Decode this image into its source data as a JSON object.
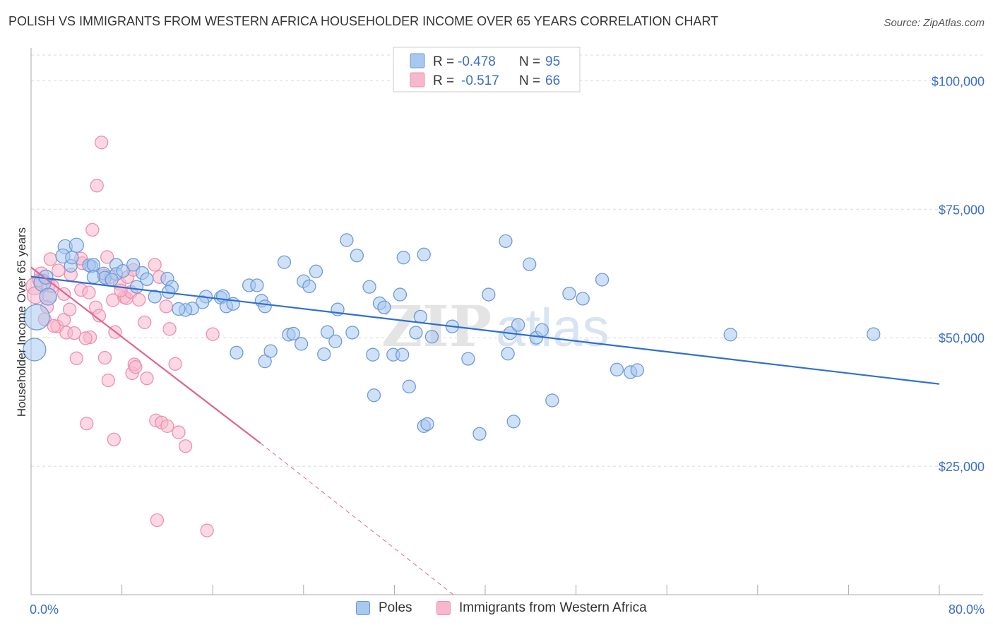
{
  "header": {
    "title": "POLISH VS IMMIGRANTS FROM WESTERN AFRICA HOUSEHOLDER INCOME OVER 65 YEARS CORRELATION CHART",
    "source": "Source: ZipAtlas.com"
  },
  "watermark": "ZIPatlas",
  "legend_box": {
    "rows": [
      {
        "r_label": "R =",
        "r_value": "-0.478",
        "n_label": "N =",
        "n_value": "95"
      },
      {
        "r_label": "R =",
        "r_value": "-0.517",
        "n_label": "N =",
        "n_value": "66"
      }
    ]
  },
  "colors": {
    "poles_fill": "#a8c8f0",
    "poles_stroke": "#6f9ad8",
    "poles_line": "#2e6fd0",
    "africa_fill": "#f7b8cc",
    "africa_stroke": "#ee8fae",
    "africa_line": "#e0658f",
    "grid": "#d8d8d8",
    "axis_text": "#3d6fc4"
  },
  "chart_data": {
    "type": "scatter",
    "title": "POLISH VS IMMIGRANTS FROM WESTERN AFRICA HOUSEHOLDER INCOME OVER 65 YEARS CORRELATION CHART",
    "xlabel": "",
    "ylabel": "Householder Income Over 65 years",
    "xlim": [
      0,
      80
    ],
    "ylim": [
      0,
      105000
    ],
    "x_tick_labels": [
      "0.0%",
      "80.0%"
    ],
    "y_ticks": [
      25000,
      50000,
      75000,
      100000
    ],
    "y_tick_labels": [
      "$25,000",
      "$50,000",
      "$75,000",
      "$100,000"
    ],
    "grid": true,
    "legend_position": "top-center",
    "series": [
      {
        "name": "Poles",
        "r": -0.478,
        "n": 95,
        "trend": {
          "x": [
            0.0,
            80.0
          ],
          "y": [
            61900,
            41000
          ],
          "dashed_to": null
        },
        "points": [
          [
            0.3,
            47700,
            16
          ],
          [
            0.5,
            54000,
            18
          ],
          [
            1.0,
            60700,
            12
          ],
          [
            1.5,
            58000,
            12
          ],
          [
            1.3,
            61800,
            10
          ],
          [
            3.0,
            67700,
            10
          ],
          [
            2.8,
            65900,
            10
          ],
          [
            4.0,
            68000,
            10
          ],
          [
            3.5,
            64000,
            9
          ],
          [
            3.6,
            65600,
            9
          ],
          [
            5.3,
            63900,
            9
          ],
          [
            5.1,
            64100,
            9
          ],
          [
            5.5,
            64200,
            9
          ],
          [
            6.4,
            62500,
            9
          ],
          [
            6.5,
            61700,
            9
          ],
          [
            5.5,
            61800,
            9
          ],
          [
            7.5,
            64200,
            9
          ],
          [
            7.5,
            62400,
            9
          ],
          [
            7.1,
            61300,
            9
          ],
          [
            8.1,
            63000,
            9
          ],
          [
            9.0,
            64200,
            9
          ],
          [
            9.8,
            62600,
            9
          ],
          [
            10.2,
            61400,
            9
          ],
          [
            9.3,
            59900,
            9
          ],
          [
            12.0,
            61500,
            9
          ],
          [
            12.4,
            59900,
            9
          ],
          [
            10.9,
            58000,
            9
          ],
          [
            12.1,
            58900,
            9
          ],
          [
            15.4,
            58000,
            9
          ],
          [
            15.1,
            56900,
            9
          ],
          [
            16.7,
            57800,
            9
          ],
          [
            16.9,
            58100,
            9
          ],
          [
            14.2,
            55700,
            9
          ],
          [
            13.6,
            55400,
            9
          ],
          [
            17.2,
            56100,
            9
          ],
          [
            17.8,
            56600,
            9
          ],
          [
            19.2,
            60200,
            9
          ],
          [
            19.9,
            60200,
            9
          ],
          [
            20.3,
            57200,
            9
          ],
          [
            20.6,
            56100,
            9
          ],
          [
            22.3,
            64700,
            9
          ],
          [
            24.0,
            61000,
            9
          ],
          [
            25.1,
            62900,
            9
          ],
          [
            24.5,
            60000,
            9
          ],
          [
            27.0,
            55500,
            9
          ],
          [
            27.8,
            69000,
            9
          ],
          [
            28.7,
            66000,
            9
          ],
          [
            29.8,
            59900,
            9
          ],
          [
            30.7,
            56700,
            9
          ],
          [
            31.1,
            55900,
            9
          ],
          [
            32.5,
            58400,
            9
          ],
          [
            32.8,
            65600,
            9
          ],
          [
            34.6,
            66200,
            9
          ],
          [
            34.3,
            54100,
            9
          ],
          [
            33.9,
            51000,
            9
          ],
          [
            35.3,
            50200,
            9
          ],
          [
            37.1,
            52200,
            9
          ],
          [
            20.6,
            45400,
            9
          ],
          [
            18.1,
            47100,
            9
          ],
          [
            21.1,
            47400,
            9
          ],
          [
            22.7,
            50600,
            9
          ],
          [
            23.1,
            50800,
            9
          ],
          [
            23.8,
            48800,
            9
          ],
          [
            25.8,
            46800,
            9
          ],
          [
            26.1,
            51100,
            9
          ],
          [
            26.8,
            49300,
            9
          ],
          [
            28.3,
            51000,
            9
          ],
          [
            30.1,
            46700,
            9
          ],
          [
            30.2,
            38800,
            9
          ],
          [
            31.9,
            46700,
            9
          ],
          [
            32.7,
            46700,
            9
          ],
          [
            33.3,
            40500,
            9
          ],
          [
            34.6,
            32800,
            9
          ],
          [
            34.9,
            33200,
            9
          ],
          [
            38.5,
            45900,
            9
          ],
          [
            39.5,
            31300,
            9
          ],
          [
            42.0,
            46900,
            9
          ],
          [
            42.5,
            33700,
            9
          ],
          [
            42.2,
            50900,
            9
          ],
          [
            42.9,
            52500,
            9
          ],
          [
            44.5,
            50000,
            9
          ],
          [
            45.0,
            51500,
            9
          ],
          [
            43.9,
            64300,
            9
          ],
          [
            41.8,
            68800,
            9
          ],
          [
            47.4,
            58600,
            9
          ],
          [
            48.6,
            57600,
            9
          ],
          [
            50.3,
            61300,
            9
          ],
          [
            51.6,
            43800,
            9
          ],
          [
            52.8,
            43300,
            9
          ],
          [
            53.4,
            43700,
            9
          ],
          [
            45.9,
            37800,
            9
          ],
          [
            40.3,
            58400,
            9
          ],
          [
            61.6,
            50600,
            9
          ],
          [
            74.2,
            50700,
            9
          ],
          [
            13.0,
            55600,
            9
          ]
        ]
      },
      {
        "name": "Immigrants from Western Africa",
        "r": -0.517,
        "n": 66,
        "trend": {
          "x": [
            0.0,
            20.2
          ],
          "y": [
            63700,
            29500
          ],
          "dashed_to": [
            37.2,
            0
          ]
        },
        "points": [
          [
            0.3,
            60000,
            12
          ],
          [
            0.4,
            58300,
            12
          ],
          [
            0.9,
            62400,
            10
          ],
          [
            1.5,
            60200,
            10
          ],
          [
            1.6,
            58200,
            10
          ],
          [
            1.2,
            53600,
            9
          ],
          [
            2.3,
            52200,
            9
          ],
          [
            2.0,
            52300,
            9
          ],
          [
            2.9,
            53500,
            9
          ],
          [
            3.1,
            51000,
            9
          ],
          [
            3.5,
            62300,
            9
          ],
          [
            2.9,
            58500,
            9
          ],
          [
            4.4,
            59300,
            9
          ],
          [
            4.5,
            64500,
            9
          ],
          [
            5.1,
            58800,
            9
          ],
          [
            4.4,
            65400,
            9
          ],
          [
            5.7,
            55900,
            9
          ],
          [
            6.0,
            54300,
            9
          ],
          [
            5.2,
            50100,
            9
          ],
          [
            6.4,
            62100,
            9
          ],
          [
            6.7,
            65700,
            9
          ],
          [
            7.0,
            61800,
            9
          ],
          [
            7.2,
            57300,
            9
          ],
          [
            7.8,
            60500,
            9
          ],
          [
            8.2,
            57900,
            9
          ],
          [
            8.5,
            61800,
            9
          ],
          [
            9.0,
            63200,
            9
          ],
          [
            8.4,
            57700,
            9
          ],
          [
            8.8,
            58900,
            9
          ],
          [
            9.5,
            57400,
            9
          ],
          [
            10.0,
            53000,
            9
          ],
          [
            10.9,
            64200,
            9
          ],
          [
            11.3,
            61800,
            9
          ],
          [
            12.2,
            51700,
            9
          ],
          [
            7.4,
            51100,
            9
          ],
          [
            6.5,
            46100,
            9
          ],
          [
            4.0,
            46000,
            9
          ],
          [
            3.8,
            50900,
            9
          ],
          [
            4.8,
            49900,
            9
          ],
          [
            6.8,
            41700,
            9
          ],
          [
            8.9,
            43100,
            9
          ],
          [
            9.1,
            44800,
            9
          ],
          [
            9.2,
            44300,
            9
          ],
          [
            10.2,
            42100,
            9
          ],
          [
            12.7,
            44900,
            9
          ],
          [
            16.0,
            50700,
            9
          ],
          [
            6.2,
            88000,
            9
          ],
          [
            5.8,
            79600,
            9
          ],
          [
            5.4,
            71000,
            9
          ],
          [
            4.9,
            33300,
            9
          ],
          [
            7.3,
            30200,
            9
          ],
          [
            11.0,
            33900,
            9
          ],
          [
            11.5,
            33500,
            9
          ],
          [
            12.0,
            32800,
            9
          ],
          [
            13.0,
            31600,
            9
          ],
          [
            13.6,
            28900,
            9
          ],
          [
            11.1,
            14500,
            9
          ],
          [
            15.5,
            12500,
            9
          ],
          [
            2.4,
            63100,
            9
          ],
          [
            1.7,
            65300,
            9
          ],
          [
            0.7,
            61200,
            9
          ],
          [
            1.9,
            60000,
            9
          ],
          [
            3.4,
            55500,
            9
          ],
          [
            7.9,
            59200,
            9
          ],
          [
            11.9,
            56100,
            9
          ],
          [
            1.4,
            56000,
            9
          ]
        ]
      }
    ]
  },
  "bottom_legend": {
    "items": [
      {
        "label": "Poles"
      },
      {
        "label": "Immigrants from Western Africa"
      }
    ]
  }
}
